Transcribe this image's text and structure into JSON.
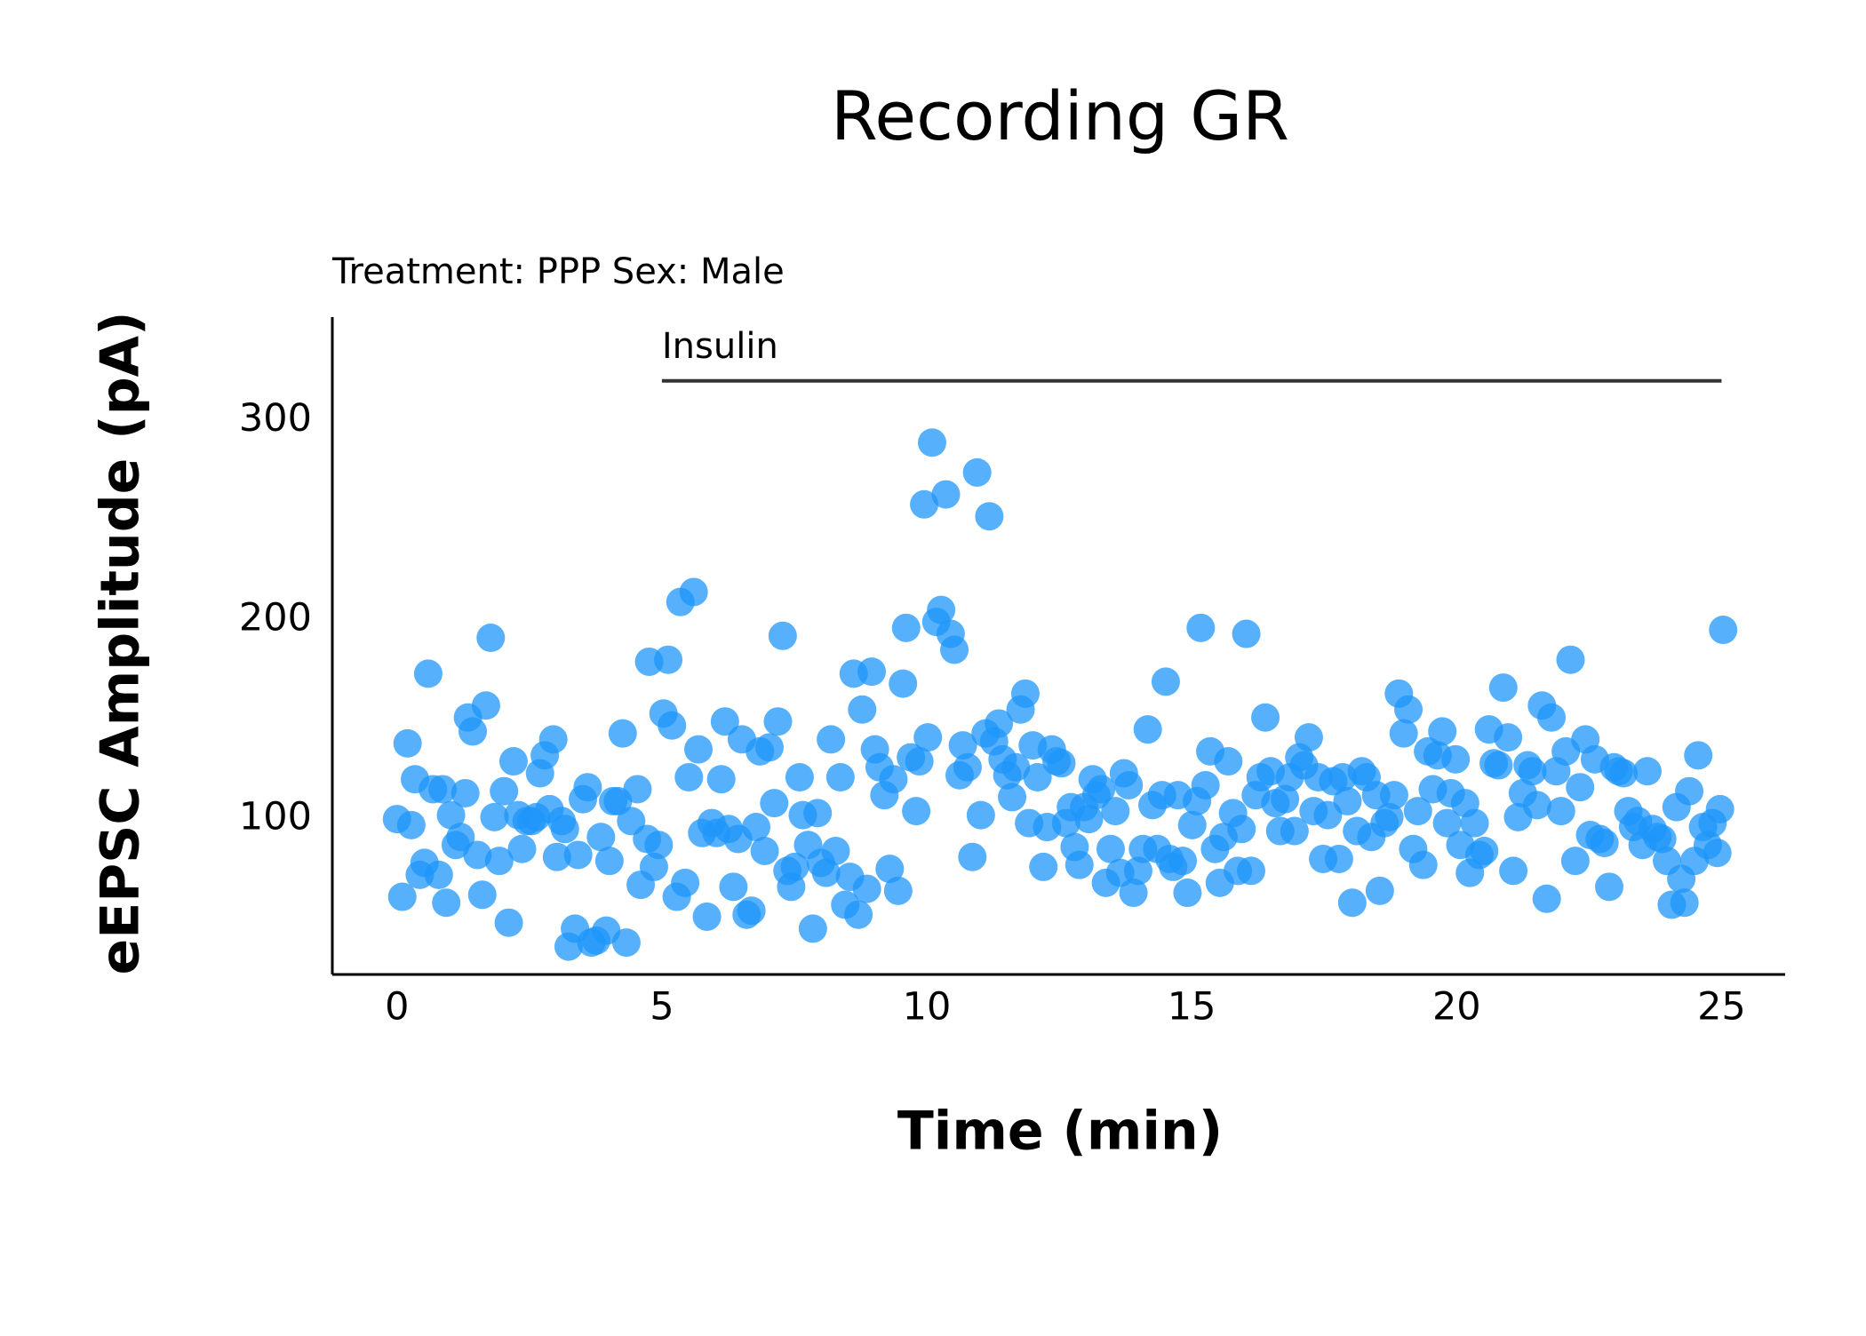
{
  "chart_data": {
    "type": "scatter",
    "title": "Recording GR",
    "subtitle": "Treatment: PPP  Sex: Male",
    "xlabel": "Time (min)",
    "ylabel": "eEPSC Amplitude (pA)",
    "xlim": [
      -1.22,
      26.2
    ],
    "ylim": [
      22,
      352
    ],
    "xticks": [
      0,
      5,
      10,
      15,
      20,
      25
    ],
    "yticks": [
      100,
      200,
      300
    ],
    "grid": false,
    "color": "#1e96fa",
    "annotation": {
      "text": "Insulin",
      "x": [
        5,
        25
      ],
      "y": 320
    },
    "x": [
      0,
      0.1,
      0.2,
      0.27,
      0.34,
      0.43,
      0.52,
      0.59,
      0.68,
      0.79,
      0.86,
      0.93,
      1.02,
      1.11,
      1.2,
      1.29,
      1.34,
      1.43,
      1.52,
      1.61,
      1.68,
      1.77,
      1.84,
      1.93,
      2.02,
      2.11,
      2.2,
      2.29,
      2.36,
      2.45,
      2.54,
      2.63,
      2.7,
      2.79,
      2.88,
      2.95,
      3.02,
      3.11,
      3.17,
      3.24,
      3.36,
      3.42,
      3.51,
      3.6,
      3.67,
      3.76,
      3.85,
      3.95,
      4.01,
      4.08,
      4.17,
      4.26,
      4.33,
      4.42,
      4.54,
      4.6,
      4.72,
      4.76,
      4.85,
      4.94,
      5.03,
      5.12,
      5.19,
      5.28,
      5.35,
      5.44,
      5.51,
      5.6,
      5.69,
      5.76,
      5.85,
      5.94,
      6.03,
      6.12,
      6.19,
      6.26,
      6.35,
      6.44,
      6.51,
      6.6,
      6.69,
      6.78,
      6.85,
      6.94,
      7.03,
      7.12,
      7.19,
      7.28,
      7.37,
      7.44,
      7.51,
      7.6,
      7.66,
      7.76,
      7.85,
      7.94,
      8.0,
      8.1,
      8.19,
      8.28,
      8.37,
      8.46,
      8.55,
      8.62,
      8.71,
      8.78,
      8.87,
      8.96,
      9.02,
      9.11,
      9.2,
      9.3,
      9.37,
      9.46,
      9.55,
      9.61,
      9.7,
      9.8,
      9.86,
      9.95,
      10.02,
      10.1,
      10.18,
      10.27,
      10.36,
      10.45,
      10.52,
      10.62,
      10.68,
      10.77,
      10.86,
      10.95,
      11.02,
      11.11,
      11.18,
      11.27,
      11.36,
      11.43,
      11.52,
      11.61,
      11.68,
      11.77,
      11.86,
      11.93,
      12.0,
      12.09,
      12.2,
      12.27,
      12.36,
      12.45,
      12.54,
      12.63,
      12.72,
      12.79,
      12.88,
      12.97,
      13.06,
      13.13,
      13.2,
      13.29,
      13.38,
      13.47,
      13.56,
      13.65,
      13.72,
      13.81,
      13.9,
      13.99,
      14.08,
      14.17,
      14.26,
      14.35,
      14.44,
      14.51,
      14.58,
      14.65,
      14.74,
      14.83,
      14.92,
      15.01,
      15.1,
      15.17,
      15.26,
      15.35,
      15.44,
      15.53,
      15.6,
      15.69,
      15.78,
      15.87,
      15.94,
      16.03,
      16.12,
      16.21,
      16.3,
      16.39,
      16.49,
      16.58,
      16.67,
      16.76,
      16.85,
      16.94,
      17.03,
      17.12,
      17.21,
      17.3,
      17.39,
      17.48,
      17.57,
      17.67,
      17.78,
      17.85,
      17.94,
      18.03,
      18.12,
      18.21,
      18.3,
      18.39,
      18.48,
      18.55,
      18.64,
      18.73,
      18.82,
      18.91,
      19.0,
      19.09,
      19.18,
      19.27,
      19.37,
      19.46,
      19.55,
      19.64,
      19.73,
      19.82,
      19.89,
      19.98,
      20.07,
      20.16,
      20.25,
      20.34,
      20.43,
      20.52,
      20.61,
      20.7,
      20.79,
      20.88,
      20.97,
      21.07,
      21.16,
      21.25,
      21.34,
      21.43,
      21.52,
      21.61,
      21.7,
      21.79,
      21.88,
      21.97,
      22.06,
      22.15,
      22.24,
      22.33,
      22.43,
      22.52,
      22.61,
      22.7,
      22.79,
      22.88,
      22.97,
      23.06,
      23.15,
      23.24,
      23.33,
      23.42,
      23.51,
      23.6,
      23.7,
      23.79,
      23.88,
      23.97,
      24.06,
      24.15,
      24.24,
      24.3,
      24.39,
      24.49,
      24.56,
      24.65,
      24.74,
      24.83,
      24.92,
      24.97,
      25.03
    ],
    "values": [
      100,
      61,
      138,
      97,
      120,
      72,
      78,
      173,
      115,
      72,
      115,
      58,
      102,
      87,
      91,
      113,
      151,
      144,
      82,
      62,
      157,
      191,
      101,
      79,
      114,
      48,
      129,
      102,
      85,
      99,
      99,
      101,
      123,
      132,
      105,
      140,
      81,
      99,
      95,
      36,
      45,
      82,
      110,
      116,
      38,
      39,
      91,
      44,
      79,
      109,
      109,
      143,
      38,
      99,
      115,
      67,
      90,
      179,
      76,
      87,
      153,
      180,
      147,
      61,
      209,
      68,
      121,
      214,
      135,
      93,
      51,
      98,
      93,
      120,
      149,
      95,
      66,
      90,
      140,
      52,
      54,
      96,
      134,
      84,
      136,
      108,
      149,
      192,
      74,
      66,
      76,
      121,
      102,
      87,
      45,
      103,
      78,
      73,
      140,
      84,
      121,
      57,
      71,
      173,
      52,
      155,
      65,
      174,
      135,
      126,
      112,
      75,
      120,
      64,
      168,
      196,
      131,
      104,
      129,
      258,
      141,
      289,
      199,
      205,
      263,
      193,
      185,
      122,
      137,
      126,
      81,
      274,
      102,
      143,
      252,
      139,
      148,
      130,
      122,
      111,
      126,
      155,
      163,
      98,
      137,
      121,
      76,
      96,
      135,
      129,
      128,
      98,
      106,
      86,
      77,
      106,
      100,
      120,
      112,
      115,
      68,
      85,
      104,
      73,
      123,
      117,
      63,
      74,
      85,
      145,
      107,
      85,
      112,
      169,
      80,
      76,
      112,
      79,
      63,
      97,
      109,
      196,
      117,
      134,
      85,
      68,
      91,
      129,
      103,
      74,
      95,
      193,
      74,
      112,
      121,
      151,
      124,
      108,
      94,
      110,
      121,
      94,
      131,
      127,
      141,
      104,
      121,
      80,
      102,
      119,
      80,
      121,
      109,
      58,
      94,
      124,
      121,
      91,
      112,
      64,
      98,
      101,
      112,
      163,
      143,
      155,
      85,
      104,
      77,
      134,
      115,
      132,
      144,
      98,
      113,
      130,
      87,
      108,
      73,
      98,
      82,
      84,
      145,
      128,
      127,
      166,
      141,
      74,
      101,
      113,
      127,
      124,
      107,
      157,
      60,
      151,
      124,
      104,
      134,
      180,
      79,
      116,
      140,
      92,
      130,
      90,
      88,
      66,
      126,
      124,
      123,
      104,
      96,
      99,
      87,
      124,
      95,
      91,
      90,
      79,
      57,
      106,
      70,
      58,
      114,
      79,
      132,
      96,
      87,
      98,
      83,
      105,
      195
    ]
  }
}
